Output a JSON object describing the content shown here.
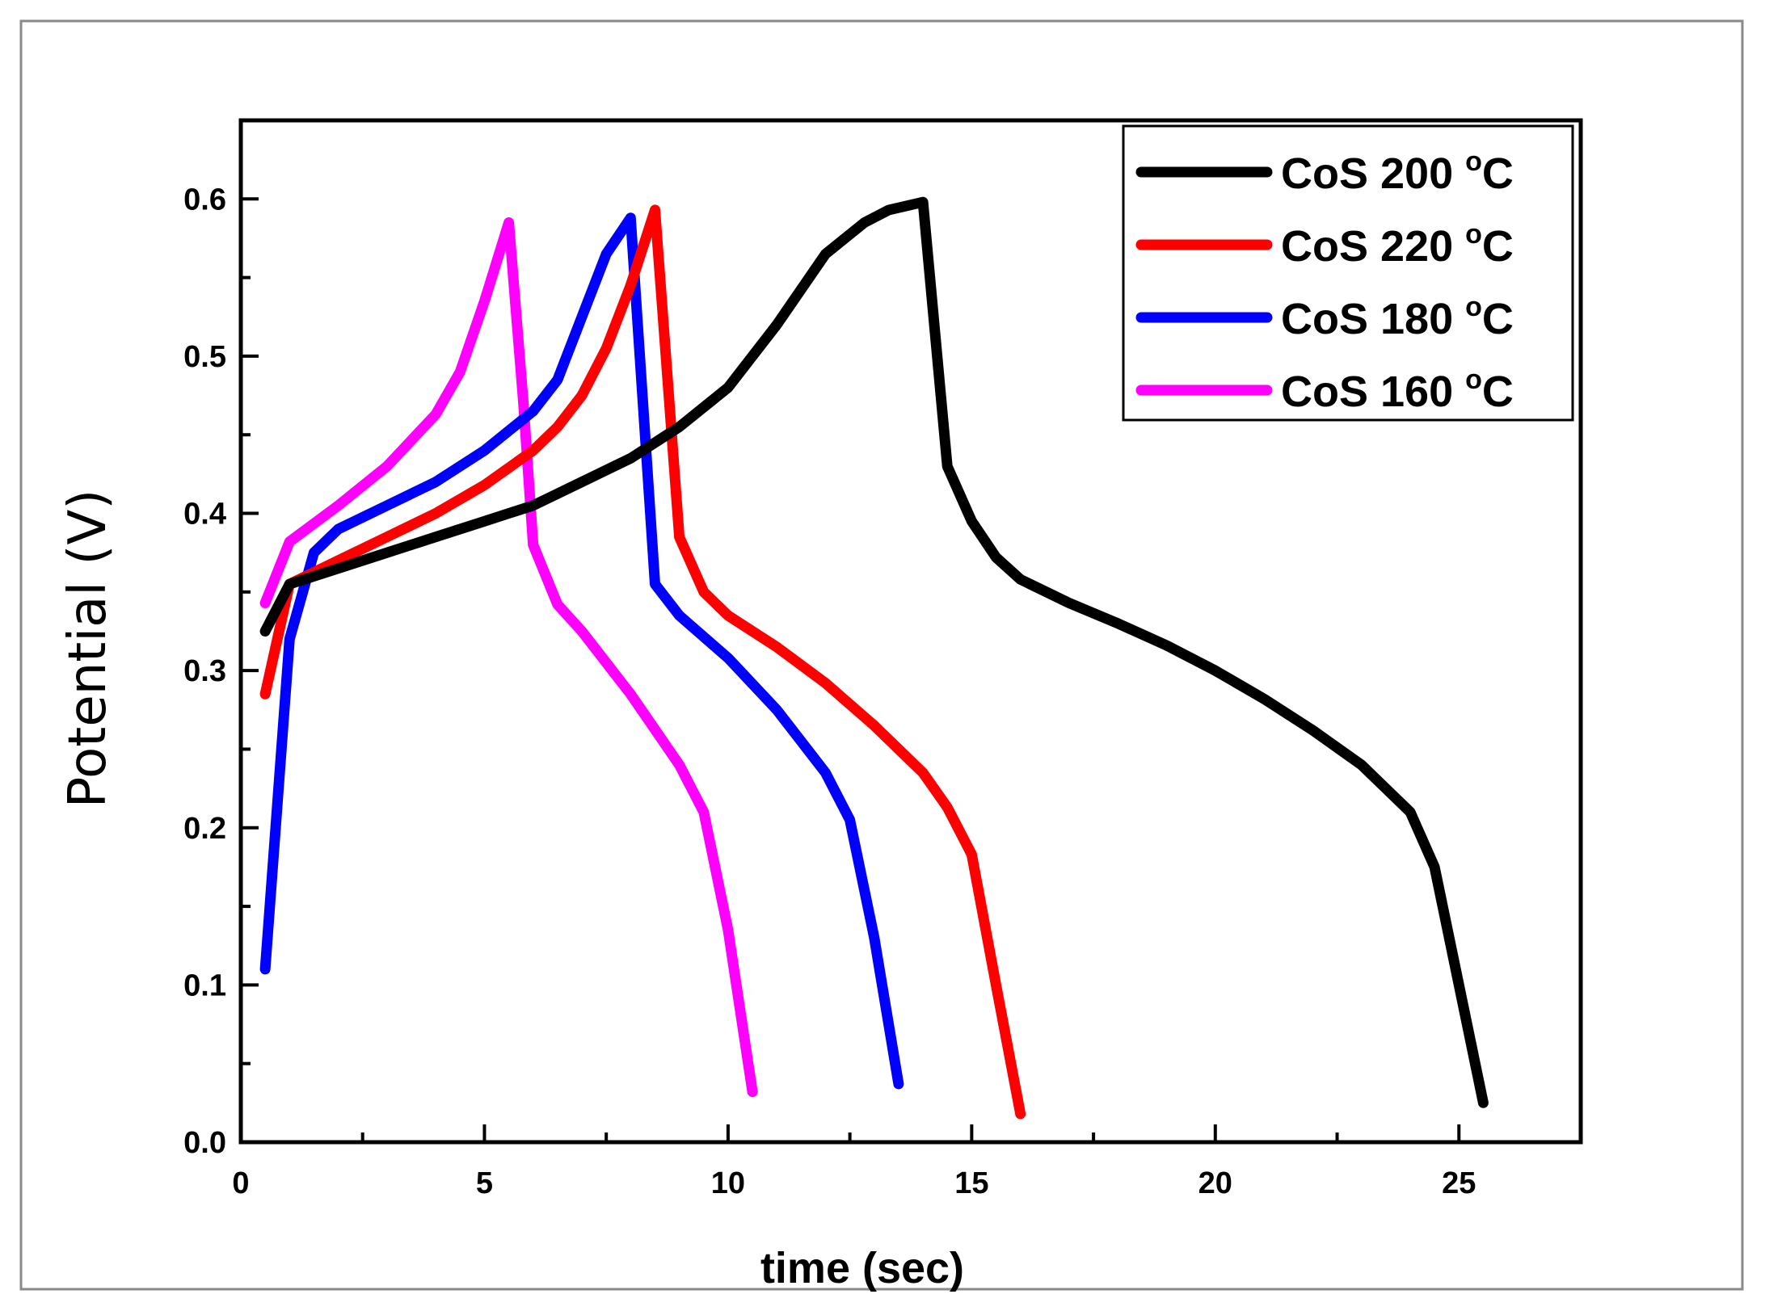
{
  "chart_data": {
    "type": "line",
    "title": "",
    "xlabel": "time (sec)",
    "ylabel": "Potential (V)",
    "xlim": [
      0,
      27.5
    ],
    "ylim": [
      0,
      0.65
    ],
    "xticks": [
      0,
      5,
      10,
      15,
      20,
      25
    ],
    "xtick_labels": [
      "0",
      "5",
      "10",
      "15",
      "20",
      "25"
    ],
    "yticks": [
      0.0,
      0.1,
      0.2,
      0.3,
      0.4,
      0.5,
      0.6
    ],
    "ytick_labels": [
      "0.0",
      "0.1",
      "0.2",
      "0.3",
      "0.4",
      "0.5",
      "0.6"
    ],
    "grid": false,
    "legend_position": "top-right",
    "series": [
      {
        "name": "CoS 200",
        "unit_sup": "o",
        "unit": "C",
        "color": "#000000",
        "x": [
          0.5,
          1.0,
          2.0,
          3.0,
          4.0,
          5.0,
          6.0,
          7.0,
          8.0,
          9.0,
          10.0,
          11.0,
          12.0,
          12.8,
          13.3,
          14.0,
          14.5,
          15.0,
          15.5,
          16.0,
          17.0,
          18.0,
          19.0,
          20.0,
          21.0,
          22.0,
          23.0,
          23.6,
          24.0,
          24.5,
          25.0,
          25.5
        ],
        "y": [
          0.325,
          0.355,
          0.365,
          0.375,
          0.385,
          0.395,
          0.405,
          0.42,
          0.435,
          0.455,
          0.48,
          0.52,
          0.565,
          0.585,
          0.593,
          0.598,
          0.43,
          0.395,
          0.372,
          0.358,
          0.343,
          0.33,
          0.316,
          0.3,
          0.282,
          0.262,
          0.24,
          0.222,
          0.21,
          0.175,
          0.1,
          0.025
        ]
      },
      {
        "name": "CoS 220",
        "unit_sup": "o",
        "unit": "C",
        "color": "#ff0000",
        "x": [
          0.5,
          1.0,
          2.0,
          3.0,
          4.0,
          5.0,
          6.0,
          6.5,
          7.0,
          7.5,
          8.0,
          8.5,
          9.0,
          9.5,
          10.0,
          11.0,
          12.0,
          13.0,
          14.0,
          14.5,
          15.0,
          15.5,
          16.0
        ],
        "y": [
          0.285,
          0.355,
          0.37,
          0.385,
          0.4,
          0.418,
          0.44,
          0.455,
          0.475,
          0.505,
          0.545,
          0.593,
          0.385,
          0.35,
          0.335,
          0.315,
          0.292,
          0.265,
          0.235,
          0.213,
          0.183,
          0.1,
          0.018
        ]
      },
      {
        "name": "CoS 180",
        "unit_sup": "o",
        "unit": "C",
        "color": "#0000ff",
        "x": [
          0.5,
          1.0,
          1.5,
          2.0,
          3.0,
          4.0,
          5.0,
          6.0,
          6.5,
          7.0,
          7.5,
          8.0,
          8.5,
          9.0,
          10.0,
          11.0,
          12.0,
          12.5,
          13.0,
          13.5
        ],
        "y": [
          0.11,
          0.32,
          0.375,
          0.39,
          0.405,
          0.42,
          0.44,
          0.465,
          0.485,
          0.525,
          0.565,
          0.588,
          0.355,
          0.335,
          0.308,
          0.275,
          0.235,
          0.205,
          0.13,
          0.037
        ]
      },
      {
        "name": "CoS 160",
        "unit_sup": "o",
        "unit": "C",
        "color": "#ff00ff",
        "x": [
          0.5,
          1.0,
          2.0,
          3.0,
          4.0,
          4.5,
          5.0,
          5.5,
          5.8,
          6.0,
          6.5,
          7.0,
          8.0,
          9.0,
          9.5,
          10.0,
          10.5
        ],
        "y": [
          0.343,
          0.382,
          0.405,
          0.43,
          0.463,
          0.49,
          0.535,
          0.585,
          0.47,
          0.38,
          0.342,
          0.325,
          0.285,
          0.24,
          0.21,
          0.135,
          0.032
        ]
      }
    ]
  }
}
